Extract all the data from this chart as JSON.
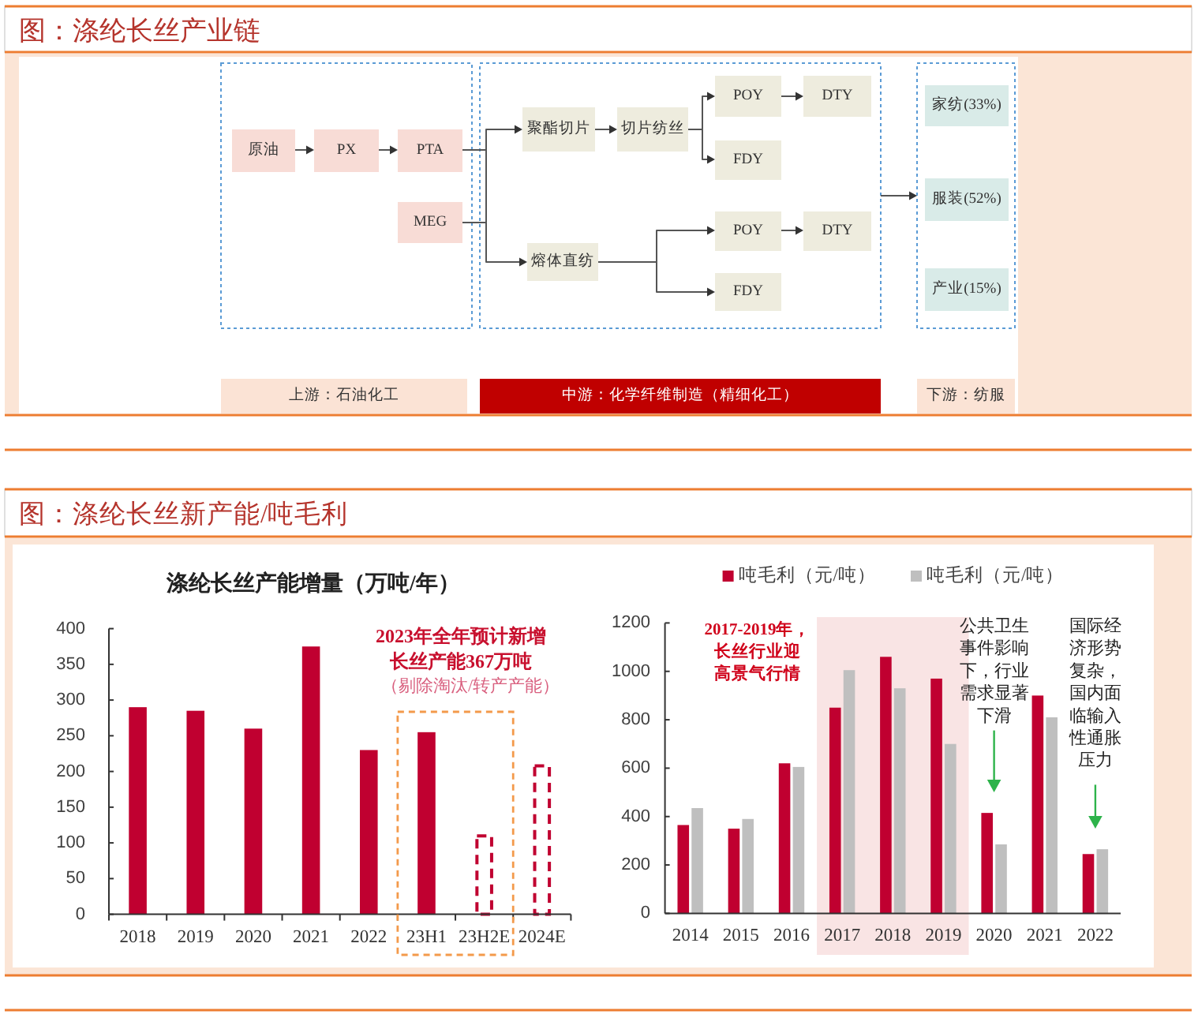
{
  "chart_data": [
    {
      "type": "other",
      "title": "图：涤纶长丝产业链",
      "annotations": [
        "原油",
        "PX",
        "PTA",
        "MEG",
        "聚酯切片",
        "切片纺丝",
        "POY",
        "DTY",
        "FDY",
        "熔体直纺",
        "POY",
        "DTY",
        "FDY",
        "家纺(33%)",
        "服装(52%)",
        "产业(15%)",
        "上游：石油化工",
        "中游：化学纤维制造（精细化工）",
        "下游：纺服"
      ]
    },
    {
      "type": "other",
      "title": "图：涤纶长丝新产能/吨毛利"
    },
    {
      "type": "bar",
      "title": "涤纶长丝产能增量（万吨/年）",
      "categories": [
        "2018",
        "2019",
        "2020",
        "2021",
        "2022",
        "23H1",
        "23H2E",
        "2024E"
      ],
      "stacked": true,
      "series": [
        {
          "color": "#c00030",
          "values": [
            290,
            285,
            260,
            375,
            230,
            255,
            null,
            null
          ]
        },
        {
          "color": "#c00030",
          "line_style": "dashed",
          "values": [
            null,
            null,
            null,
            null,
            null,
            null,
            112,
            210
          ]
        }
      ],
      "ylim": [
        0,
        400
      ],
      "yticks": [
        0,
        50,
        100,
        150,
        200,
        250,
        300,
        350,
        400
      ],
      "annotations": [
        "2023年全年预计新增长丝产能367万吨",
        "（剔除淘汰/转产产能）"
      ]
    },
    {
      "type": "bar",
      "categories": [
        "2014",
        "2015",
        "2016",
        "2017",
        "2018",
        "2019",
        "2020",
        "2021",
        "2022"
      ],
      "series": [
        {
          "name": "吨毛利（元/吨）",
          "color": "#c00030",
          "values": [
            365,
            350,
            620,
            850,
            1060,
            970,
            415,
            900,
            245
          ]
        },
        {
          "name": "吨毛利（元/吨）",
          "color": "#bfbfbf",
          "values": [
            435,
            390,
            605,
            1005,
            930,
            700,
            285,
            810,
            265
          ]
        }
      ],
      "ylim": [
        0,
        1200
      ],
      "yticks": [
        0,
        200,
        400,
        600,
        800,
        1000,
        1200
      ],
      "legend": "top",
      "bands": [
        {
          "axis": "x",
          "from": "2017",
          "to": "2019",
          "color": "#f9e4e4"
        }
      ],
      "annotations": [
        "2017-2019年，长丝行业迎高景气行情",
        "公共卫生事件影响下，行业需求显著下滑",
        "国际经济形势复杂，国内面临输入性通胀压力"
      ]
    }
  ]
}
